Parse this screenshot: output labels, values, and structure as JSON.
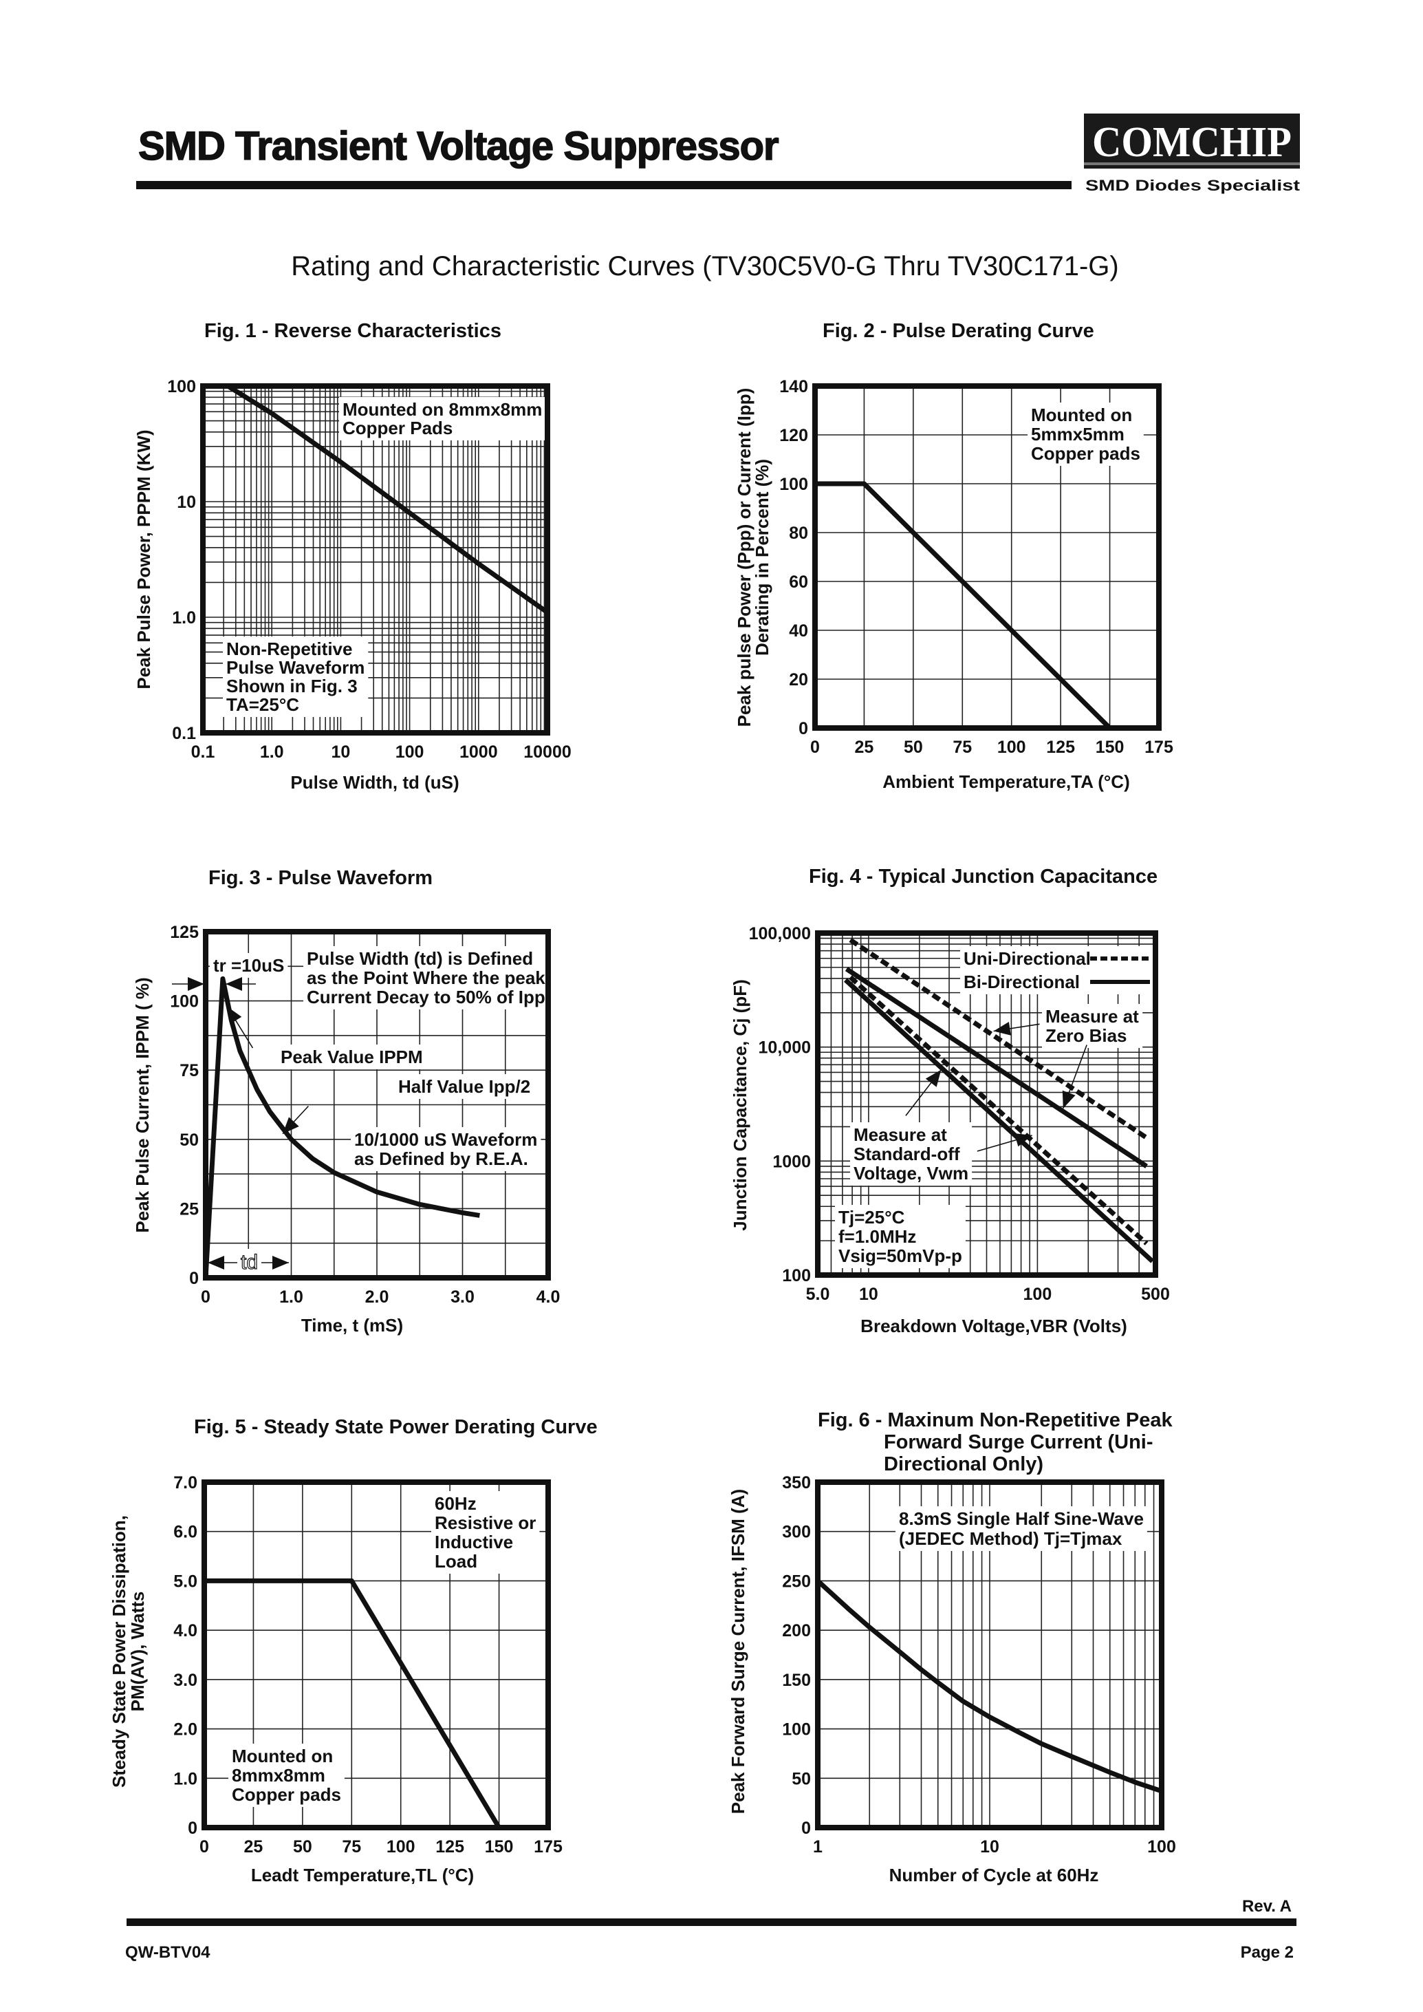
{
  "header": {
    "title": "SMD Transient Voltage Suppressor",
    "logo_text": "COMCHIP",
    "logo_tagline": "SMD Diodes Specialist"
  },
  "subtitle": "Rating and Characteristic Curves (TV30C5V0-G Thru TV30C171-G)",
  "footer": {
    "rev": "Rev. A",
    "doc": "QW-BTV04",
    "page": "Page 2"
  },
  "chart_data": [
    {
      "type": "line",
      "title": [
        "Fig. 1 -  Reverse Characteristics"
      ],
      "xlabel": "Pulse Width, td (uS)",
      "ylabel": [
        "Peak Pulse Power, PPPM (KW)"
      ],
      "xscale": "log",
      "yscale": "log",
      "xlim": [
        0.1,
        10000
      ],
      "ylim": [
        0.1,
        100
      ],
      "xticks": [
        0.1,
        1,
        10,
        100,
        1000,
        10000
      ],
      "xtick_labels": [
        "0.1",
        "1.0",
        "10",
        "100",
        "1000",
        "10000"
      ],
      "yticks": [
        0.1,
        1,
        10,
        100
      ],
      "ytick_labels": [
        "0.1",
        "1.0",
        "10",
        "100"
      ],
      "grid": true,
      "series": [
        {
          "style": "solid",
          "points": [
            [
              0.23,
              100
            ],
            [
              1,
              58
            ],
            [
              10,
              22
            ],
            [
              100,
              8
            ],
            [
              1000,
              2.9
            ],
            [
              10000,
              1.1
            ]
          ]
        }
      ],
      "annotations": [
        {
          "lines": [
            "Mounted on 8mmx8mm",
            "Copper Pads"
          ]
        },
        {
          "lines": [
            "Non-Repetitive",
            "Pulse Waveform",
            "Shown in Fig. 3",
            "TA=25°C"
          ]
        }
      ]
    },
    {
      "type": "line",
      "title": [
        "Fig. 2 - Pulse Derating Curve"
      ],
      "xlabel": "Ambient Temperature,TA (°C)",
      "ylabel": [
        "Peak pulse Power (Ppp) or Current (Ipp)",
        "Derating in Percent (%)"
      ],
      "xscale": "linear",
      "yscale": "linear",
      "xlim": [
        0,
        175
      ],
      "ylim": [
        0,
        140
      ],
      "xticks": [
        0,
        25,
        50,
        75,
        100,
        125,
        150,
        175
      ],
      "xtick_labels": [
        "0",
        "25",
        "50",
        "75",
        "100",
        "125",
        "150",
        "175"
      ],
      "yticks": [
        0,
        20,
        40,
        60,
        80,
        100,
        120,
        140
      ],
      "ytick_labels": [
        "0",
        "20",
        "40",
        "60",
        "80",
        "100",
        "120",
        "140"
      ],
      "grid": true,
      "series": [
        {
          "style": "solid",
          "points": [
            [
              0,
              100
            ],
            [
              25,
              100
            ],
            [
              150,
              0
            ]
          ]
        }
      ],
      "annotations": [
        {
          "lines": [
            "Mounted on",
            "5mmx5mm",
            "Copper pads"
          ]
        }
      ]
    },
    {
      "type": "line",
      "title": [
        "Fig. 3 -  Pulse Waveform"
      ],
      "xlabel": "Time, t (mS)",
      "ylabel": [
        "Peak Pulse Current, IPPM ( %)"
      ],
      "xscale": "linear",
      "yscale": "linear",
      "xlim": [
        0,
        4.0
      ],
      "ylim": [
        0,
        125
      ],
      "xticks": [
        0,
        1,
        2,
        3,
        4
      ],
      "xtick_labels": [
        "0",
        "1.0",
        "2.0",
        "3.0",
        "4.0"
      ],
      "yticks": [
        0,
        25,
        50,
        75,
        100,
        125
      ],
      "ytick_labels": [
        "0",
        "25",
        "50",
        "75",
        "100",
        "125"
      ],
      "grid": true,
      "series": [
        {
          "style": "solid",
          "points": [
            [
              0,
              0
            ],
            [
              0.2,
              108
            ],
            [
              0.3,
              93
            ],
            [
              0.4,
              82
            ],
            [
              0.5,
              75
            ],
            [
              0.6,
              68
            ],
            [
              0.75,
              60
            ],
            [
              1.0,
              50
            ],
            [
              1.25,
              43
            ],
            [
              1.5,
              38
            ],
            [
              2.0,
              31
            ],
            [
              2.5,
              26.5
            ],
            [
              3.0,
              23.5
            ],
            [
              3.2,
              22.5
            ]
          ]
        }
      ],
      "annotations": [
        {
          "lines": [
            "tr =10uS"
          ]
        },
        {
          "lines": [
            "Pulse Width (td) is Defined",
            "as the Point Where the peak",
            "Current Decay to 50% of Ipp"
          ]
        },
        {
          "lines": [
            "Peak Value IPPM"
          ]
        },
        {
          "lines": [
            "Half Value Ipp/2"
          ]
        },
        {
          "lines": [
            "10/1000 uS Waveform",
            "as Defined by R.E.A."
          ]
        },
        {
          "lines": [
            "td"
          ]
        }
      ]
    },
    {
      "type": "line",
      "title": [
        "Fig. 4 -  Typical Junction Capacitance"
      ],
      "xlabel": "Breakdown Voltage,VBR (Volts)",
      "ylabel": [
        "Junction Capacitance, Cj (pF)"
      ],
      "xscale": "log",
      "yscale": "log",
      "xlim": [
        5,
        500
      ],
      "ylim": [
        100,
        100000
      ],
      "xticks": [
        5,
        10,
        100,
        500
      ],
      "xtick_labels": [
        "5.0",
        "10",
        "100",
        "500"
      ],
      "yticks": [
        100,
        1000,
        10000,
        100000
      ],
      "ytick_labels": [
        "100",
        "1000",
        "10,000",
        "100,000"
      ],
      "grid": true,
      "legend": [
        "Uni-Directional",
        "Bi-Directional"
      ],
      "legend_position": "top-right",
      "series": [
        {
          "name": "Uni-Directional",
          "style": "dashed",
          "points": [
            [
              7.8,
              87000
            ],
            [
              443,
              1600
            ]
          ]
        },
        {
          "name": "Bi-Directional",
          "style": "solid",
          "points": [
            [
              7.4,
              48400
            ],
            [
              443,
              900
            ]
          ]
        },
        {
          "name": "Uni-Directional",
          "style": "dashed",
          "points": [
            [
              7.8,
              41000
            ],
            [
              443,
              189
            ]
          ]
        },
        {
          "name": "Bi-Directional",
          "style": "solid",
          "points": [
            [
              7.3,
              38800
            ],
            [
              480,
              132
            ]
          ]
        }
      ],
      "annotations": [
        {
          "lines": [
            "Measure at",
            "Zero Bias"
          ]
        },
        {
          "lines": [
            "Measure at",
            "Standard-off",
            "Voltage, Vwm"
          ]
        },
        {
          "lines": [
            "Tj=25°C",
            "f=1.0MHz",
            "Vsig=50mVp-p"
          ]
        }
      ]
    },
    {
      "type": "line",
      "title": [
        "Fig. 5 - Steady State Power Derating Curve"
      ],
      "xlabel": "Leadt Temperature,TL (°C)",
      "ylabel": [
        "Steady State Power Dissipation,",
        "PM(AV), Watts"
      ],
      "xscale": "linear",
      "yscale": "linear",
      "xlim": [
        0,
        175
      ],
      "ylim": [
        0,
        7.0
      ],
      "xticks": [
        0,
        25,
        50,
        75,
        100,
        125,
        150,
        175
      ],
      "xtick_labels": [
        "0",
        "25",
        "50",
        "75",
        "100",
        "125",
        "150",
        "175"
      ],
      "yticks": [
        0,
        1,
        2,
        3,
        4,
        5,
        6,
        7
      ],
      "ytick_labels": [
        "0",
        "1.0",
        "2.0",
        "3.0",
        "4.0",
        "5.0",
        "6.0",
        "7.0"
      ],
      "grid": true,
      "series": [
        {
          "style": "solid",
          "points": [
            [
              0,
              5
            ],
            [
              75,
              5
            ],
            [
              150,
              0
            ]
          ]
        }
      ],
      "annotations": [
        {
          "lines": [
            "60Hz",
            "Resistive or",
            "Inductive",
            "Load"
          ]
        },
        {
          "lines": [
            "Mounted on",
            "8mmx8mm",
            "Copper pads"
          ]
        }
      ]
    },
    {
      "type": "line",
      "title": [
        "Fig. 6 - Maxinum Non-Repetitive Peak",
        "Forward Surge Current (Uni-",
        "Directional Only)"
      ],
      "xlabel": "Number of Cycle at 60Hz",
      "ylabel": [
        "Peak Forward Surge Current, IFSM  (A)"
      ],
      "xscale": "log",
      "yscale": "linear",
      "xlim": [
        1,
        100
      ],
      "ylim": [
        0,
        350
      ],
      "xticks": [
        1,
        10,
        100
      ],
      "xtick_labels": [
        "1",
        "10",
        "100"
      ],
      "yticks": [
        0,
        50,
        100,
        150,
        200,
        250,
        300,
        350
      ],
      "ytick_labels": [
        "0",
        "50",
        "100",
        "150",
        "200",
        "250",
        "300",
        "350"
      ],
      "grid": true,
      "series": [
        {
          "style": "solid",
          "points": [
            [
              1,
              250
            ],
            [
              1.5,
              222
            ],
            [
              2,
              203
            ],
            [
              3,
              178
            ],
            [
              4,
              160
            ],
            [
              5,
              147
            ],
            [
              7,
              128
            ],
            [
              10,
              112
            ],
            [
              15,
              96
            ],
            [
              20,
              85
            ],
            [
              30,
              72
            ],
            [
              50,
              56
            ],
            [
              70,
              46
            ],
            [
              100,
              37
            ]
          ]
        }
      ],
      "annotations": [
        {
          "lines": [
            "8.3mS Single Half Sine-Wave",
            "(JEDEC Method) Tj=Tjmax"
          ]
        }
      ]
    }
  ]
}
